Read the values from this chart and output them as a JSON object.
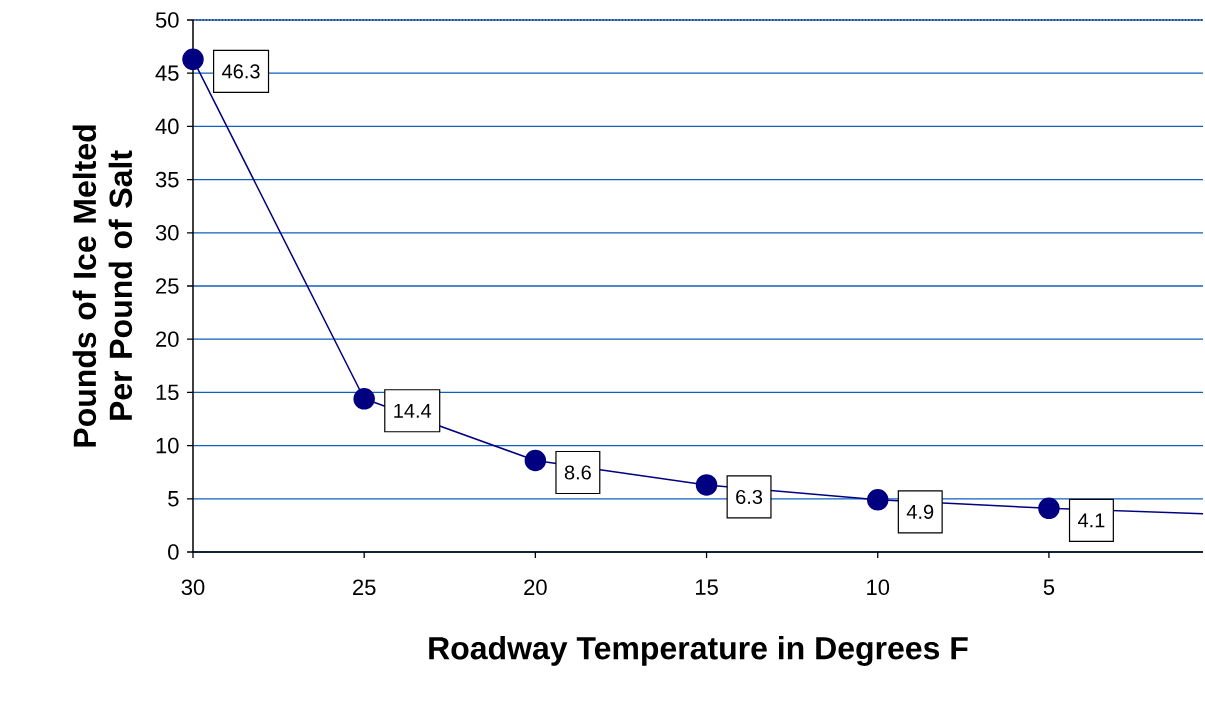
{
  "chart_data": {
    "type": "line",
    "xlabel": "Roadway Temperature in Degrees F",
    "ylabel": "Pounds of Ice Melted Per Pound of Salt",
    "x": [
      30,
      25,
      20,
      15,
      10,
      5,
      0.5
    ],
    "series": [
      {
        "color": "#000080",
        "values": [
          46.3,
          14.4,
          8.6,
          6.3,
          4.9,
          4.1,
          3.6
        ],
        "value_labels": [
          "46.3",
          "14.4",
          "8.6",
          "6.3",
          "4.9",
          "4.1",
          null
        ]
      }
    ],
    "xlim": [
      30,
      0.5
    ],
    "xticks": [
      30,
      25,
      20,
      15,
      10,
      5
    ],
    "ylim": [
      0,
      50
    ],
    "yticks": [
      0,
      5,
      10,
      15,
      20,
      25,
      30,
      35,
      40,
      45,
      50
    ],
    "grid": "y",
    "marker": "circle",
    "line_style": "solid"
  }
}
